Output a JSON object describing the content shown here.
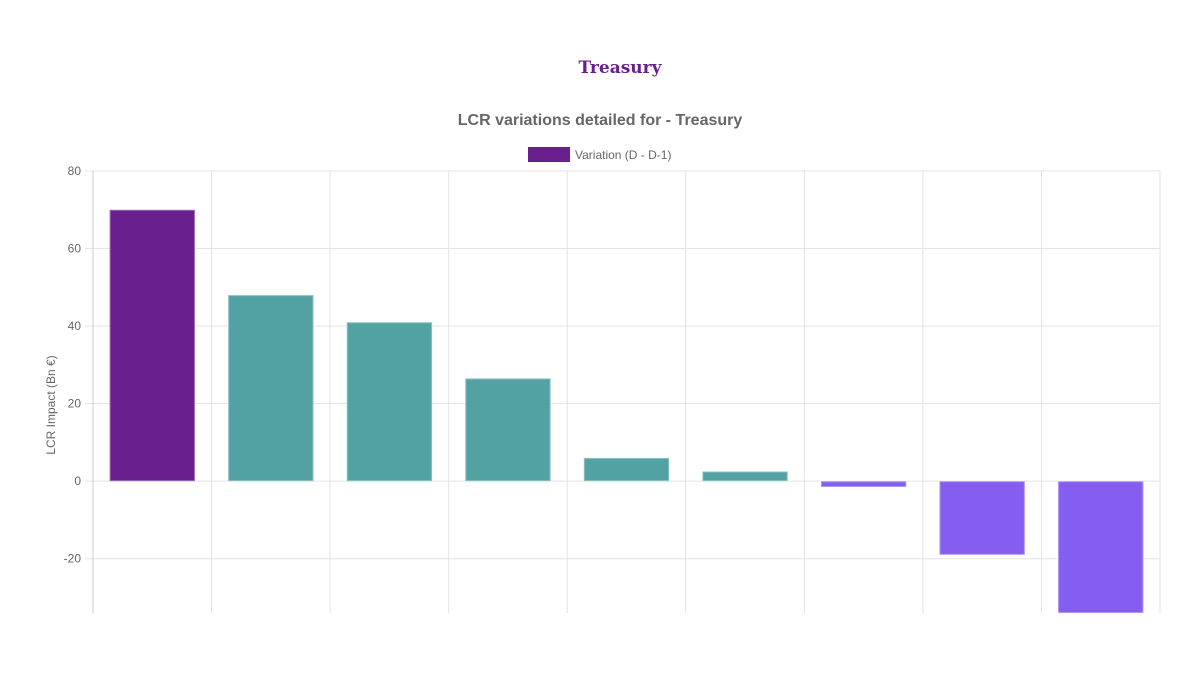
{
  "page": {
    "title": "Treasury"
  },
  "chart_data": {
    "type": "bar",
    "title": "LCR variations detailed for - Treasury",
    "xlabel": "",
    "ylabel": "LCR Impact (Bn €)",
    "ylim": [
      -34,
      80
    ],
    "yticks": [
      80,
      60,
      40,
      20,
      0,
      -20
    ],
    "grid": true,
    "legend_position": "top",
    "categories": [
      "",
      "",
      "",
      "",
      "",
      "",
      "",
      "",
      ""
    ],
    "series": [
      {
        "name": "Variation (D - D-1)",
        "values": [
          70,
          48,
          41,
          26.5,
          6,
          2.5,
          -1.5,
          -19,
          -34
        ]
      }
    ],
    "colors": {
      "total": "#6a1f8f",
      "positive": "#52a2a4",
      "negative": "#845ef0",
      "legend": "#6a1f8f",
      "grid": "#e3e3e3",
      "axis_text": "#666666",
      "title_text": "#666666"
    }
  }
}
